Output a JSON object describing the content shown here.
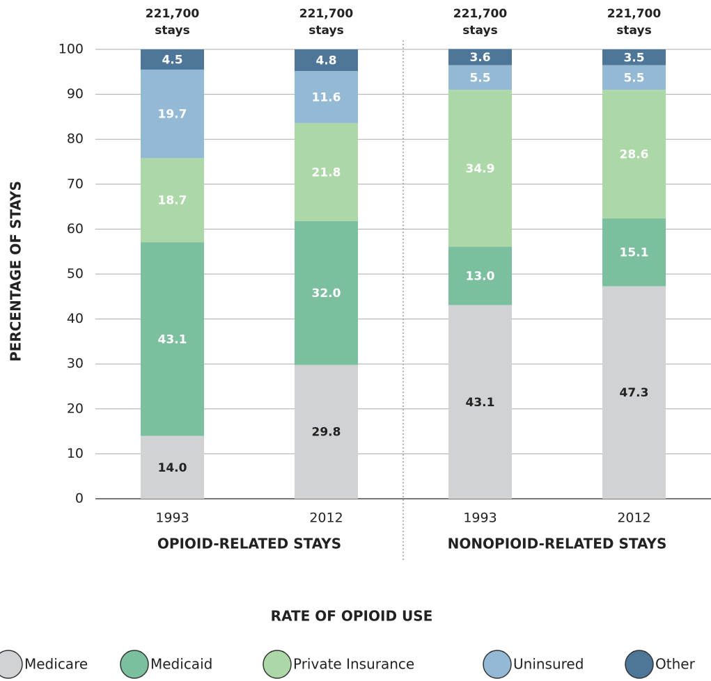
{
  "chart_data": {
    "type": "bar",
    "stacked": true,
    "y_label": "PERCENTAGE OF STAYS",
    "x_label": "RATE OF OPIOID USE",
    "categories": [
      "1993",
      "2012",
      "1993",
      "2012"
    ],
    "group_labels": [
      "OPIOID-RELATED STAYS",
      "NONOPIOID-RELATED STAYS"
    ],
    "top_labels": [
      [
        "221,700",
        "stays"
      ],
      [
        "221,700",
        "stays"
      ],
      [
        "221,700",
        "stays"
      ],
      [
        "221,700",
        "stays"
      ]
    ],
    "ylim": [
      0,
      100
    ],
    "yticks": [
      0,
      10,
      20,
      30,
      40,
      50,
      60,
      70,
      80,
      90,
      100
    ],
    "grid": true,
    "series": [
      {
        "name": "Medicare",
        "color": "#d1d2d4",
        "label_color": "#222222",
        "values": [
          14.0,
          29.8,
          43.1,
          47.3
        ],
        "value_labels": [
          "14.0",
          "29.8",
          "43.1",
          "47.3"
        ]
      },
      {
        "name": "Medicaid",
        "color": "#7bbf9e",
        "label_color": "#ffffff",
        "values": [
          43.1,
          32.0,
          13.0,
          15.1
        ],
        "value_labels": [
          "43.1",
          "32.0",
          "13.0",
          "15.1"
        ]
      },
      {
        "name": "Private Insurance",
        "color": "#acd8a8",
        "label_color": "#ffffff",
        "values": [
          18.7,
          21.8,
          34.9,
          28.6
        ],
        "value_labels": [
          "18.7",
          "21.8",
          "34.9",
          "28.6"
        ]
      },
      {
        "name": "Uninsured",
        "color": "#93b9d4",
        "label_color": "#ffffff",
        "values": [
          19.7,
          11.6,
          5.5,
          5.5
        ],
        "value_labels": [
          "19.7",
          "11.6",
          "5.5",
          "5.5"
        ]
      },
      {
        "name": "Other",
        "color": "#4e7698",
        "label_color": "#ffffff",
        "values": [
          4.5,
          4.8,
          3.6,
          3.5
        ],
        "value_labels": [
          "4.5",
          "4.8",
          "3.6",
          "3.5"
        ]
      }
    ]
  }
}
